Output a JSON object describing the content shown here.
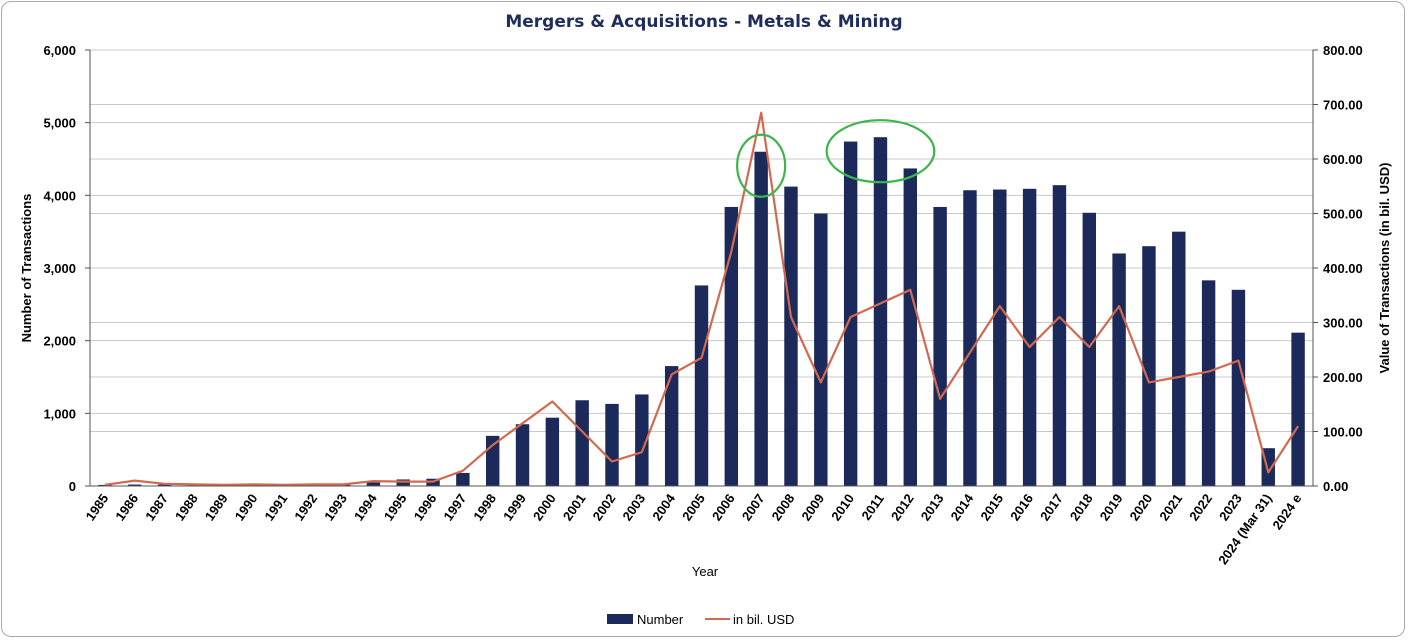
{
  "chart_data": {
    "type": "bar",
    "title": "Mergers & Acquisitions - Metals & Mining",
    "xlabel": "Year",
    "ylabel": "Number of Transactions",
    "y2label": "Value of Transactions (in bil. USD)",
    "ylim": [
      0,
      6000
    ],
    "y2lim": [
      0,
      800
    ],
    "yticks": [
      "0",
      "1,000",
      "2,000",
      "3,000",
      "4,000",
      "5,000",
      "6,000"
    ],
    "y2ticks": [
      "0.00",
      "100.00",
      "200.00",
      "300.00",
      "400.00",
      "500.00",
      "600.00",
      "700.00",
      "800.00"
    ],
    "categories": [
      "1985",
      "1986",
      "1987",
      "1988",
      "1989",
      "1990",
      "1991",
      "1992",
      "1993",
      "1994",
      "1995",
      "1996",
      "1997",
      "1998",
      "1999",
      "2000",
      "2001",
      "2002",
      "2003",
      "2004",
      "2005",
      "2006",
      "2007",
      "2008",
      "2009",
      "2010",
      "2011",
      "2012",
      "2013",
      "2014",
      "2015",
      "2016",
      "2017",
      "2018",
      "2019",
      "2020",
      "2021",
      "2022",
      "2023",
      "2024 (Mar 31)",
      "2024 e"
    ],
    "series": [
      {
        "name": "Number",
        "type": "bar",
        "axis": "left",
        "color": "#1b2a5a",
        "values": [
          15,
          20,
          20,
          20,
          20,
          25,
          25,
          30,
          30,
          50,
          90,
          100,
          180,
          690,
          850,
          940,
          1180,
          1130,
          1260,
          1650,
          2760,
          3840,
          4600,
          4120,
          3750,
          4740,
          4800,
          4370,
          3840,
          4070,
          4080,
          4090,
          4140,
          3760,
          3200,
          3300,
          3500,
          2830,
          2700,
          520,
          2110
        ]
      },
      {
        "name": "in bil. USD",
        "type": "line",
        "axis": "right",
        "color": "#d2694f",
        "values": [
          2,
          10,
          4,
          3,
          2,
          3,
          2,
          3,
          3,
          9,
          8,
          8,
          28,
          75,
          115,
          155,
          100,
          45,
          62,
          205,
          235,
          430,
          685,
          310,
          190,
          310,
          335,
          360,
          160,
          245,
          330,
          255,
          310,
          255,
          330,
          190,
          200,
          210,
          230,
          25,
          110
        ]
      }
    ],
    "annotations": [
      {
        "shape": "ellipse",
        "color": "#3cb54a",
        "around": [
          "2007"
        ]
      },
      {
        "shape": "ellipse",
        "color": "#3cb54a",
        "around": [
          "2010",
          "2011",
          "2012"
        ]
      }
    ],
    "grid": true,
    "legend": "bottom-center"
  },
  "colors": {
    "title": "#1f2d5c",
    "bar": "#1b2a5a",
    "line": "#d2694f",
    "grid": "#c8c8c8",
    "highlight": "#3cb54a"
  }
}
